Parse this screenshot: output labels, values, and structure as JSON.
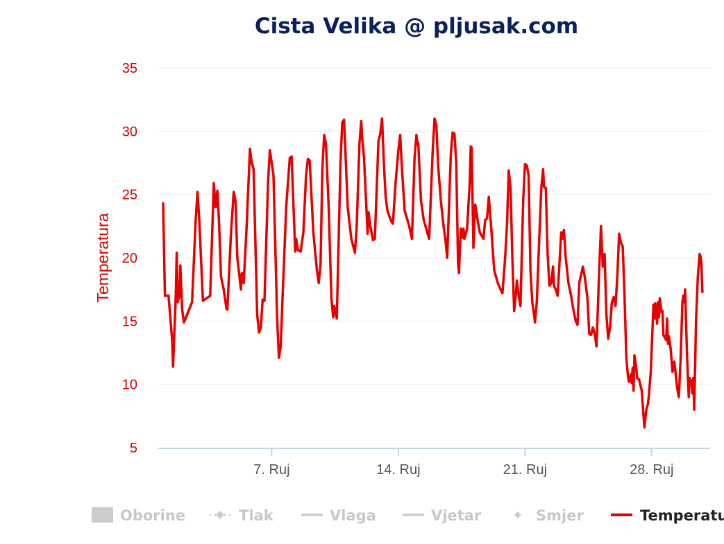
{
  "chart_data": {
    "type": "line",
    "title": "Cista Velika @ pljusak.com",
    "ylabel": "Temperatura",
    "ylim": [
      5,
      35
    ],
    "yticks": [
      "5",
      "10",
      "15",
      "20",
      "25",
      "30",
      "35"
    ],
    "xlim": [
      0,
      30
    ],
    "xticks": [
      {
        "label": "7. Ruj",
        "x": 6
      },
      {
        "label": "14. Ruj",
        "x": 13
      },
      {
        "label": "21. Ruj",
        "x": 20
      },
      {
        "label": "28. Ruj",
        "x": 27
      }
    ],
    "grid": true,
    "legend_position": "bottom",
    "legend": [
      {
        "name": "Oborine",
        "symbol": "area",
        "color": "#cccccc",
        "active": false
      },
      {
        "name": "Tlak",
        "symbol": "line-diamond-dotted",
        "color": "#cccccc",
        "active": false
      },
      {
        "name": "Vlaga",
        "symbol": "line",
        "color": "#cccccc",
        "active": false
      },
      {
        "name": "Vjetar",
        "symbol": "line",
        "color": "#cccccc",
        "active": false
      },
      {
        "name": "Smjer",
        "symbol": "diamond",
        "color": "#cccccc",
        "active": false
      },
      {
        "name": "Temperatu",
        "symbol": "line",
        "color": "#e60000",
        "active": true
      }
    ],
    "series": [
      {
        "name": "Temperatura",
        "color": "#e60000",
        "points": [
          [
            0.0,
            24.3
          ],
          [
            0.1,
            17.0
          ],
          [
            0.3,
            17.0
          ],
          [
            0.5,
            13.5
          ],
          [
            0.55,
            11.4
          ],
          [
            0.7,
            17.0
          ],
          [
            0.75,
            20.4
          ],
          [
            0.8,
            16.5
          ],
          [
            0.9,
            17.0
          ],
          [
            0.95,
            19.4
          ],
          [
            1.05,
            15.9
          ],
          [
            1.15,
            14.9
          ],
          [
            1.6,
            16.5
          ],
          [
            1.8,
            23.0
          ],
          [
            1.9,
            25.2
          ],
          [
            2.0,
            23.0
          ],
          [
            2.2,
            16.6
          ],
          [
            2.6,
            17.0
          ],
          [
            2.8,
            25.9
          ],
          [
            2.9,
            24.0
          ],
          [
            3.0,
            25.3
          ],
          [
            3.1,
            22.5
          ],
          [
            3.2,
            18.5
          ],
          [
            3.35,
            17.5
          ],
          [
            3.5,
            16.0
          ],
          [
            3.55,
            15.9
          ],
          [
            3.75,
            22.0
          ],
          [
            3.9,
            25.2
          ],
          [
            4.0,
            24.5
          ],
          [
            4.1,
            20.0
          ],
          [
            4.3,
            17.5
          ],
          [
            4.35,
            18.8
          ],
          [
            4.45,
            18.0
          ],
          [
            4.6,
            22.0
          ],
          [
            4.8,
            28.6
          ],
          [
            4.9,
            27.5
          ],
          [
            5.0,
            27.0
          ],
          [
            5.2,
            15.5
          ],
          [
            5.3,
            14.1
          ],
          [
            5.4,
            14.5
          ],
          [
            5.5,
            16.7
          ],
          [
            5.6,
            16.6
          ],
          [
            5.8,
            26.0
          ],
          [
            5.9,
            28.5
          ],
          [
            6.0,
            27.5
          ],
          [
            6.1,
            26.5
          ],
          [
            6.3,
            15.3
          ],
          [
            6.4,
            12.1
          ],
          [
            6.5,
            13.0
          ],
          [
            6.6,
            16.8
          ],
          [
            6.8,
            24.0
          ],
          [
            7.0,
            27.9
          ],
          [
            7.1,
            28.0
          ],
          [
            7.3,
            20.5
          ],
          [
            7.35,
            21.5
          ],
          [
            7.45,
            20.6
          ],
          [
            7.6,
            20.5
          ],
          [
            7.75,
            22.0
          ],
          [
            7.9,
            26.5
          ],
          [
            8.0,
            27.8
          ],
          [
            8.1,
            27.7
          ],
          [
            8.3,
            22.0
          ],
          [
            8.5,
            19.0
          ],
          [
            8.6,
            18.0
          ],
          [
            8.7,
            19.5
          ],
          [
            8.8,
            27.0
          ],
          [
            8.9,
            29.7
          ],
          [
            9.0,
            29.0
          ],
          [
            9.15,
            24.0
          ],
          [
            9.3,
            16.8
          ],
          [
            9.4,
            15.3
          ],
          [
            9.45,
            16.2
          ],
          [
            9.6,
            15.2
          ],
          [
            9.8,
            27.5
          ],
          [
            9.9,
            30.7
          ],
          [
            10.0,
            30.9
          ],
          [
            10.1,
            27.5
          ],
          [
            10.2,
            24.0
          ],
          [
            10.4,
            21.5
          ],
          [
            10.6,
            20.4
          ],
          [
            10.7,
            22.5
          ],
          [
            10.85,
            29.0
          ],
          [
            10.95,
            30.8
          ],
          [
            11.0,
            29.5
          ],
          [
            11.1,
            28.0
          ],
          [
            11.2,
            25.0
          ],
          [
            11.3,
            21.9
          ],
          [
            11.35,
            23.6
          ],
          [
            11.45,
            22.5
          ],
          [
            11.6,
            21.4
          ],
          [
            11.7,
            21.5
          ],
          [
            11.9,
            29.2
          ],
          [
            12.0,
            29.8
          ],
          [
            12.1,
            31.0
          ],
          [
            12.2,
            27.5
          ],
          [
            12.3,
            24.8
          ],
          [
            12.4,
            23.7
          ],
          [
            12.6,
            22.9
          ],
          [
            12.7,
            22.7
          ],
          [
            12.85,
            26.0
          ],
          [
            13.0,
            28.5
          ],
          [
            13.1,
            29.7
          ],
          [
            13.2,
            27.0
          ],
          [
            13.35,
            23.7
          ],
          [
            13.5,
            23.0
          ],
          [
            13.6,
            22.5
          ],
          [
            13.75,
            21.5
          ],
          [
            13.9,
            28.0
          ],
          [
            14.0,
            29.7
          ],
          [
            14.05,
            29.0
          ],
          [
            14.1,
            29.1
          ],
          [
            14.25,
            24.5
          ],
          [
            14.4,
            23.0
          ],
          [
            14.6,
            22.0
          ],
          [
            14.7,
            21.5
          ],
          [
            14.9,
            28.5
          ],
          [
            15.0,
            31.0
          ],
          [
            15.1,
            30.5
          ],
          [
            15.2,
            27.3
          ],
          [
            15.35,
            24.5
          ],
          [
            15.5,
            22.5
          ],
          [
            15.6,
            21.5
          ],
          [
            15.7,
            20.0
          ],
          [
            15.9,
            28.2
          ],
          [
            16.0,
            29.9
          ],
          [
            16.1,
            29.8
          ],
          [
            16.2,
            27.5
          ],
          [
            16.3,
            19.5
          ],
          [
            16.35,
            18.8
          ],
          [
            16.45,
            22.3
          ],
          [
            16.55,
            21.6
          ],
          [
            16.6,
            22.3
          ],
          [
            16.65,
            21.5
          ],
          [
            16.8,
            22.3
          ],
          [
            16.95,
            26.0
          ],
          [
            17.0,
            28.8
          ],
          [
            17.05,
            28.7
          ],
          [
            17.15,
            20.8
          ],
          [
            17.25,
            24.2
          ],
          [
            17.4,
            22.8
          ],
          [
            17.5,
            22.0
          ],
          [
            17.7,
            21.5
          ],
          [
            17.8,
            23.0
          ],
          [
            17.9,
            23.1
          ],
          [
            18.0,
            24.8
          ],
          [
            18.1,
            23.0
          ],
          [
            18.3,
            19.0
          ],
          [
            18.5,
            18.0
          ],
          [
            18.65,
            17.5
          ],
          [
            18.75,
            17.2
          ],
          [
            18.9,
            20.0
          ],
          [
            19.0,
            22.5
          ],
          [
            19.1,
            26.9
          ],
          [
            19.2,
            25.5
          ],
          [
            19.3,
            20.0
          ],
          [
            19.4,
            15.8
          ],
          [
            19.5,
            17.2
          ],
          [
            19.55,
            18.2
          ],
          [
            19.65,
            17.0
          ],
          [
            19.75,
            16.2
          ],
          [
            19.9,
            24.5
          ],
          [
            20.0,
            27.4
          ],
          [
            20.1,
            27.3
          ],
          [
            20.2,
            26.5
          ],
          [
            20.3,
            19.0
          ],
          [
            20.4,
            16.5
          ],
          [
            20.5,
            15.5
          ],
          [
            20.55,
            14.9
          ],
          [
            20.65,
            16.5
          ],
          [
            20.8,
            22.0
          ],
          [
            20.9,
            25.5
          ],
          [
            21.0,
            27.0
          ],
          [
            21.05,
            25.6
          ],
          [
            21.15,
            25.5
          ],
          [
            21.25,
            20.3
          ],
          [
            21.35,
            17.8
          ],
          [
            21.45,
            18.0
          ],
          [
            21.55,
            19.3
          ],
          [
            21.6,
            17.8
          ],
          [
            21.7,
            17.5
          ],
          [
            21.8,
            17.0
          ],
          [
            21.9,
            19.5
          ],
          [
            22.0,
            22.0
          ],
          [
            22.05,
            21.5
          ],
          [
            22.15,
            22.2
          ],
          [
            22.25,
            20.0
          ],
          [
            22.4,
            18.0
          ],
          [
            22.55,
            17.0
          ],
          [
            22.65,
            16.1
          ],
          [
            22.8,
            15.0
          ],
          [
            22.9,
            14.7
          ],
          [
            23.0,
            18.0
          ],
          [
            23.2,
            19.3
          ],
          [
            23.3,
            18.5
          ],
          [
            23.45,
            16.8
          ],
          [
            23.55,
            14.0
          ],
          [
            23.65,
            13.9
          ],
          [
            23.75,
            14.5
          ],
          [
            23.85,
            14.0
          ],
          [
            23.95,
            13.0
          ],
          [
            24.1,
            19.0
          ],
          [
            24.2,
            22.5
          ],
          [
            24.3,
            19.3
          ],
          [
            24.4,
            20.3
          ],
          [
            24.5,
            15.5
          ],
          [
            24.6,
            13.6
          ],
          [
            24.7,
            14.5
          ],
          [
            24.8,
            16.5
          ],
          [
            24.9,
            16.9
          ],
          [
            25.0,
            16.2
          ],
          [
            25.1,
            18.5
          ],
          [
            25.2,
            21.9
          ],
          [
            25.3,
            21.2
          ],
          [
            25.4,
            20.9
          ],
          [
            25.5,
            17.0
          ],
          [
            25.6,
            12.1
          ],
          [
            25.7,
            10.5
          ],
          [
            25.75,
            10.2
          ],
          [
            25.85,
            10.8
          ],
          [
            25.9,
            10.1
          ],
          [
            25.95,
            11.3
          ],
          [
            26.0,
            9.5
          ],
          [
            26.05,
            12.3
          ],
          [
            26.15,
            11.3
          ],
          [
            26.2,
            10.5
          ],
          [
            26.3,
            10.4
          ],
          [
            26.45,
            9.5
          ],
          [
            26.55,
            7.5
          ],
          [
            26.6,
            6.6
          ],
          [
            26.7,
            8.0
          ],
          [
            26.8,
            8.5
          ],
          [
            26.85,
            9.2
          ],
          [
            26.95,
            11.0
          ],
          [
            27.05,
            14.5
          ],
          [
            27.1,
            16.3
          ],
          [
            27.15,
            15.2
          ],
          [
            27.2,
            16.4
          ],
          [
            27.3,
            14.8
          ],
          [
            27.35,
            16.5
          ],
          [
            27.4,
            15.3
          ],
          [
            27.45,
            16.8
          ],
          [
            27.55,
            15.7
          ],
          [
            27.6,
            15.8
          ],
          [
            27.65,
            13.9
          ],
          [
            27.8,
            13.5
          ],
          [
            27.85,
            15.2
          ],
          [
            27.9,
            13.2
          ],
          [
            27.95,
            13.8
          ],
          [
            28.05,
            12.8
          ],
          [
            28.15,
            11.0
          ],
          [
            28.25,
            11.8
          ],
          [
            28.3,
            11.2
          ],
          [
            28.4,
            9.8
          ],
          [
            28.5,
            9.0
          ],
          [
            28.6,
            12.0
          ],
          [
            28.7,
            16.5
          ],
          [
            28.75,
            17.0
          ],
          [
            28.8,
            16.5
          ],
          [
            28.85,
            17.5
          ],
          [
            28.95,
            12.5
          ],
          [
            29.05,
            9.0
          ],
          [
            29.1,
            10.5
          ],
          [
            29.15,
            10.1
          ],
          [
            29.2,
            10.3
          ],
          [
            29.25,
            9.3
          ],
          [
            29.3,
            10.5
          ],
          [
            29.35,
            8.0
          ],
          [
            29.45,
            15.0
          ],
          [
            29.55,
            18.5
          ],
          [
            29.65,
            20.3
          ],
          [
            29.7,
            20.1
          ],
          [
            29.75,
            19.5
          ],
          [
            29.8,
            17.3
          ]
        ]
      }
    ]
  }
}
